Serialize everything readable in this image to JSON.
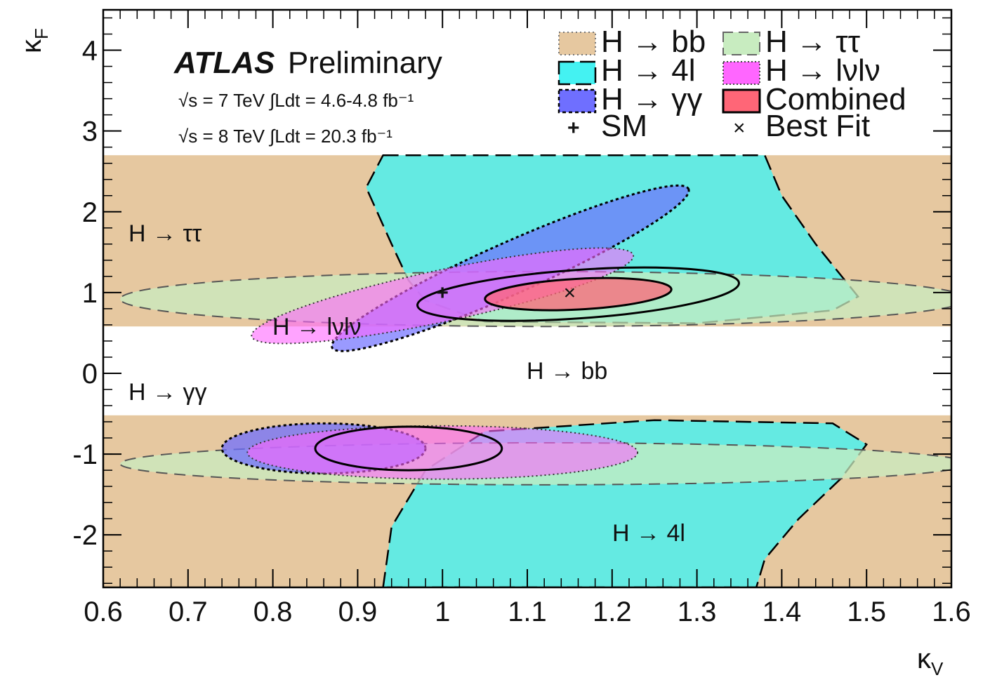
{
  "chart_data": {
    "type": "contour",
    "xlabel": "κ",
    "xlabel_sub": "V",
    "ylabel": "κ",
    "ylabel_sub": "F",
    "xlim": [
      0.6,
      1.6
    ],
    "ylim": [
      -2.65,
      4.5
    ],
    "xticks": [
      "0.6",
      "0.7",
      "0.8",
      "0.9",
      "1",
      "1.1",
      "1.2",
      "1.3",
      "1.4",
      "1.5",
      "1.6"
    ],
    "yticks": [
      "-2",
      "-1",
      "0",
      "1",
      "2",
      "3",
      "4"
    ],
    "header": {
      "experiment": "ATLAS",
      "status": "Preliminary",
      "lumi_7": "√s = 7 TeV ∫Ldt = 4.6-4.8 fb⁻¹",
      "lumi_8": "√s = 8 TeV ∫Ldt = 20.3 fb⁻¹"
    },
    "legend": [
      {
        "label": "H → bb",
        "color": "#e6c8a0"
      },
      {
        "label": "H → ττ",
        "color": "#c8ecc0"
      },
      {
        "label": "H → 4l",
        "color": "#44f2f2"
      },
      {
        "label": "H → lνlν",
        "color": "#ff66ff"
      },
      {
        "label": "H → γγ",
        "color": "#6f6fff"
      },
      {
        "label": "Combined",
        "color": "#ff6677"
      },
      {
        "label": "SM",
        "marker": "+"
      },
      {
        "label": "Best Fit",
        "marker": "×"
      }
    ],
    "region_labels": {
      "tautau": "H → ττ",
      "lvlv": "H → lνlν",
      "bb": "H → bb",
      "gammagamma": "H → γγ",
      "fourl": "H → 4l"
    },
    "sm_point": {
      "x": 1.0,
      "y": 1.0
    },
    "best_fit": {
      "x": 1.15,
      "y": 1.0
    },
    "contours": {
      "bb": {
        "y_bands": [
          [
            0.58,
            2.7
          ],
          [
            -2.65,
            -0.52
          ]
        ],
        "x_range": [
          0.6,
          1.6
        ]
      },
      "tautau_pos": {
        "cx": 1.12,
        "cy": 0.92,
        "rx": 0.5,
        "ry": 0.34
      },
      "tautau_neg": {
        "cx": 1.12,
        "cy": -1.12,
        "rx": 0.5,
        "ry": 0.26
      },
      "lvlv_pos": {
        "cx": 1.0,
        "cy": 0.96,
        "rx": 0.23,
        "ry": 0.32
      },
      "lvlv_neg": {
        "cx": 1.0,
        "cy": -0.98,
        "rx": 0.23,
        "ry": 0.33
      },
      "gg_pos": {
        "cx": 1.08,
        "cy": 1.3,
        "rx": 0.23,
        "ry": 0.32
      },
      "gg_neg": {
        "cx": 0.86,
        "cy": -0.93,
        "rx": 0.12,
        "ry": 0.31
      },
      "combined_pos_68": {
        "cx": 1.16,
        "cy": 0.98,
        "rx": 0.11,
        "ry": 0.19
      },
      "combined_pos_95": {
        "cx": 1.16,
        "cy": 0.98,
        "rx": 0.19,
        "ry": 0.3
      },
      "combined_neg_95": {
        "cx": 0.96,
        "cy": -0.93,
        "rx": 0.11,
        "ry": 0.27
      }
    }
  }
}
